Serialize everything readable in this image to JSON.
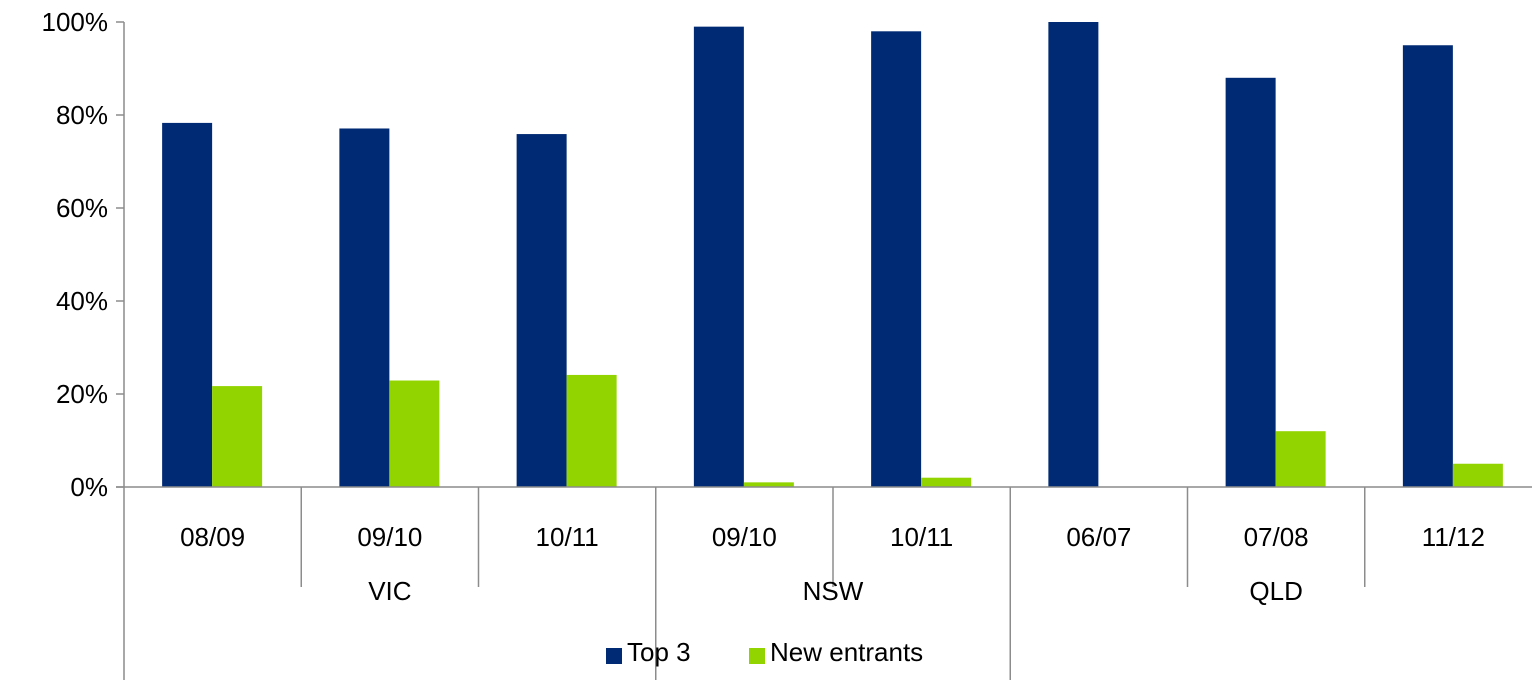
{
  "chart_data": {
    "type": "bar",
    "categories": [
      "08/09",
      "09/10",
      "10/11",
      "09/10",
      "10/11",
      "06/07",
      "07/08",
      "11/12"
    ],
    "groups": [
      {
        "label": "VIC",
        "span": 3
      },
      {
        "label": "NSW",
        "span": 2
      },
      {
        "label": "QLD",
        "span": 3
      }
    ],
    "series": [
      {
        "name": "Top 3",
        "color": "#002a74",
        "values": [
          78.3,
          77.1,
          75.9,
          99.0,
          98.0,
          100.0,
          88.0,
          95.0
        ]
      },
      {
        "name": "New entrants",
        "color": "#92d400",
        "values": [
          21.7,
          22.9,
          24.1,
          1.0,
          2.0,
          0.0,
          12.0,
          5.0
        ]
      }
    ],
    "yticks": [
      "0%",
      "20%",
      "40%",
      "60%",
      "80%",
      "100%"
    ],
    "ylim": [
      0,
      100
    ],
    "grid": false,
    "legend": "bottom"
  }
}
